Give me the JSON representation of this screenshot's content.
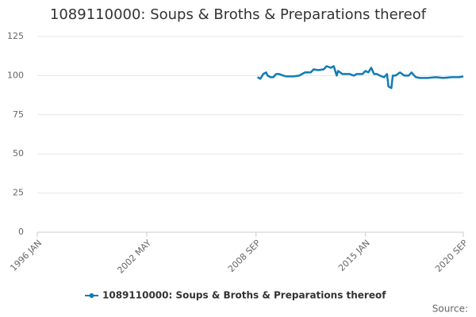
{
  "chart_data": {
    "type": "line",
    "title": "1089110000: Soups & Broths & Preparations thereof",
    "source": "Source:",
    "x": [
      "2008 OCT",
      "2008 DEC",
      "2009 FEB",
      "2009 APR",
      "2009 MAY",
      "2009 JUL",
      "2009 SEP",
      "2009 NOV",
      "2010 JAN",
      "2010 APR",
      "2010 JUN",
      "2010 NOV",
      "2011 MAR",
      "2011 JUL",
      "2011 NOV",
      "2012 JAN",
      "2012 APR",
      "2012 AUG",
      "2012 OCT",
      "2013 JAN",
      "2013 MAR",
      "2013 MAY",
      "2013 JUN",
      "2013 SEP",
      "2013 DEC",
      "2014 FEB",
      "2014 MAY",
      "2014 JUL",
      "2014 NOV",
      "2015 JAN",
      "2015 MAR",
      "2015 MAY",
      "2015 JUL",
      "2015 SEP",
      "2015 NOV",
      "2016 FEB",
      "2016 APR",
      "2016 MAY",
      "2016 JUL",
      "2016 AUG",
      "2016 OCT",
      "2017 JAN",
      "2017 APR",
      "2017 JUL",
      "2017 SEP",
      "2017 DEC",
      "2018 MAR",
      "2018 AUG",
      "2019 FEB",
      "2019 JUL",
      "2020 JAN",
      "2020 JUN",
      "2020 SEP"
    ],
    "series": [
      {
        "name": "1089110000: Soups & Broths & Preparations thereof",
        "color": "#0f7cb6",
        "values": [
          99,
          98,
          101,
          102,
          100,
          99,
          99,
          101,
          101,
          100,
          99.5,
          99.5,
          100,
          102,
          102,
          104,
          103.5,
          104,
          106,
          105,
          106,
          100,
          103,
          101,
          101,
          101,
          100,
          101,
          101,
          103,
          102,
          105,
          101,
          101,
          100,
          99,
          101,
          93,
          92,
          100,
          100,
          102,
          100,
          100,
          102,
          99,
          98.5,
          98.5,
          99,
          98.5,
          99,
          99,
          99.5
        ]
      }
    ],
    "xlim": [
      "1996 JAN",
      "2020 SEP"
    ],
    "xticks": [
      "1996 JAN",
      "2002 MAY",
      "2008 SEP",
      "2015 JAN",
      "2020 SEP"
    ],
    "ylim": [
      0,
      125
    ],
    "yticks": [
      0,
      25,
      50,
      75,
      100,
      125
    ],
    "grid": true
  }
}
